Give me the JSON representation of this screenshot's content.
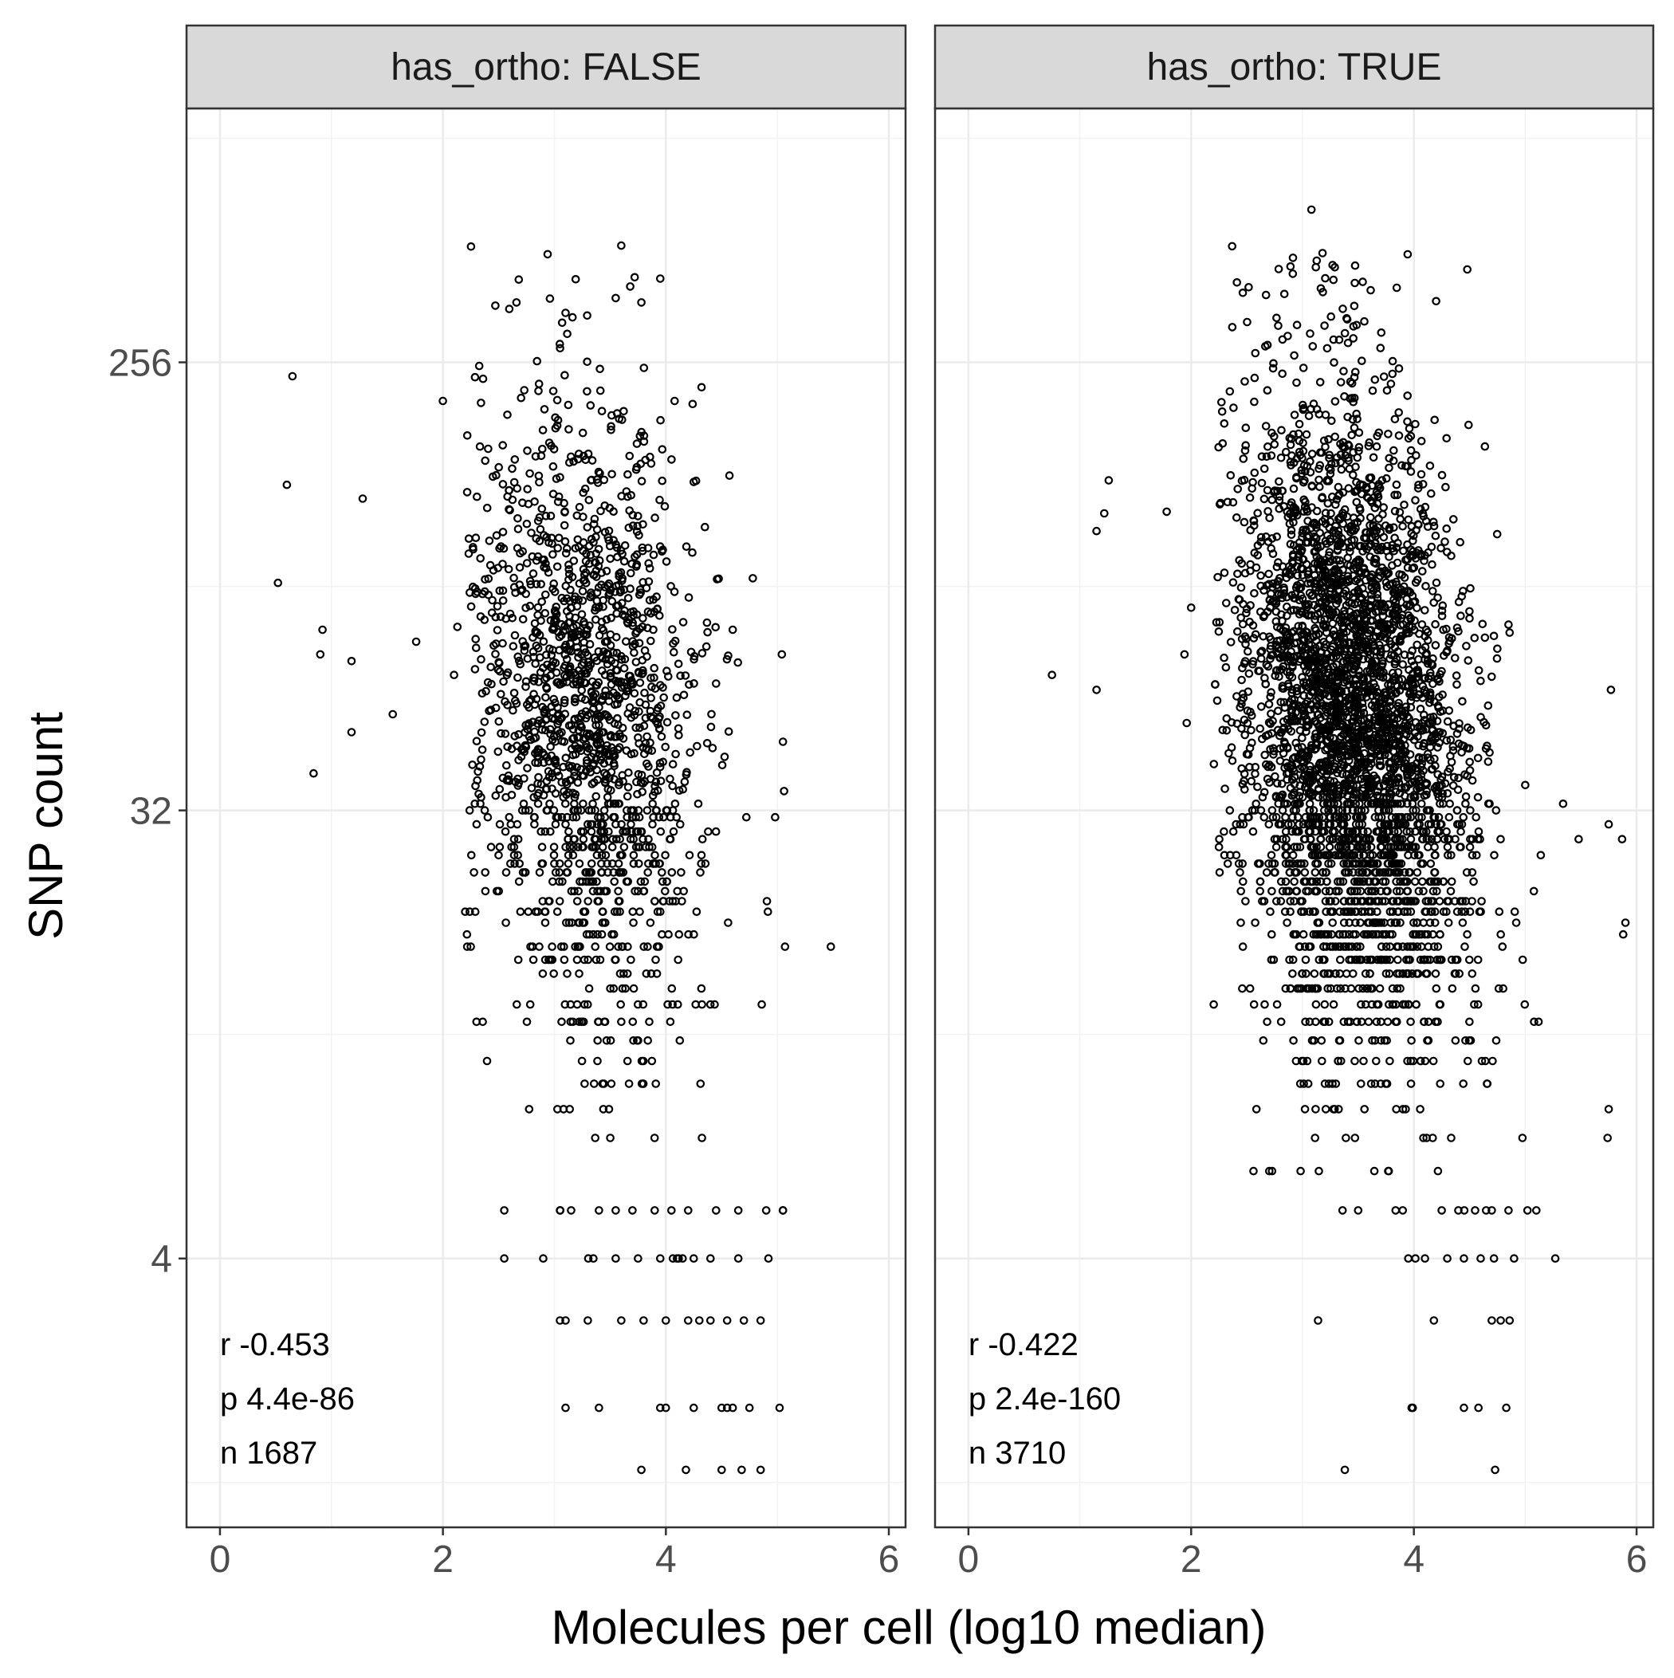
{
  "chart_data": {
    "type": "scatter",
    "xlabel": "Molecules per cell (log10 median)",
    "ylabel": "SNP count",
    "y_scale": "log2",
    "x_ticks": [
      "0",
      "2",
      "4",
      "6"
    ],
    "y_ticks": [
      "4",
      "32",
      "256"
    ],
    "xlim": [
      -0.3,
      6.15
    ],
    "ylim_log2": [
      0.2,
      9.7
    ],
    "grid": true,
    "point_style": "hollow-circle",
    "panels": [
      {
        "strip": "has_ortho: FALSE",
        "annotation": {
          "r": "r -0.453",
          "p": " p 4.4e-86",
          "n": " n 1687"
        },
        "n": 1687,
        "seed": 17,
        "x_center": 3.3,
        "outliers": [
          [
            0.52,
            92
          ],
          [
            0.6,
            145
          ],
          [
            0.65,
            240
          ],
          [
            0.92,
            74
          ],
          [
            0.9,
            66
          ],
          [
            1.18,
            64
          ],
          [
            1.18,
            46
          ],
          [
            0.84,
            38
          ],
          [
            1.28,
            136
          ],
          [
            1.55,
            50
          ],
          [
            1.76,
            70
          ],
          [
            2.0,
            214
          ],
          [
            5.06,
            35
          ],
          [
            5.48,
            17
          ],
          [
            5.05,
            5
          ],
          [
            4.24,
            211
          ],
          [
            3.6,
            440
          ],
          [
            3.72,
            380
          ],
          [
            3.55,
            345
          ],
          [
            3.78,
            338
          ],
          [
            3.68,
            364
          ],
          [
            3.1,
            322
          ],
          [
            2.66,
            338
          ],
          [
            2.47,
            333
          ],
          [
            5.04,
            66
          ],
          [
            5.05,
            44
          ],
          [
            4.98,
            31
          ],
          [
            3.78,
            1.5
          ],
          [
            4.18,
            1.5
          ],
          [
            4.5,
            1.5
          ],
          [
            4.68,
            1.5
          ],
          [
            4.85,
            1.5
          ],
          [
            2.9,
            4
          ],
          [
            2.55,
            5
          ],
          [
            2.55,
            4
          ],
          [
            2.25,
            17
          ],
          [
            2.2,
            20
          ],
          [
            2.13,
            75
          ],
          [
            2.1,
            60
          ],
          [
            4.32,
            228
          ],
          [
            4.78,
            94
          ],
          [
            4.6,
            74
          ]
        ],
        "low_rows": [
          [
            5,
            [
              3.05,
              3.15,
              3.4,
              3.55,
              3.7,
              3.9,
              4.05,
              4.2,
              4.45,
              4.65,
              4.9,
              5.05
            ]
          ],
          [
            4,
            [
              3.35,
              3.55,
              3.75,
              3.95,
              4.1,
              4.15,
              4.25,
              4.4,
              4.65,
              4.92
            ]
          ],
          [
            3,
            [
              3.05,
              3.1,
              3.3,
              3.6,
              3.8,
              4.0,
              4.2,
              4.3,
              4.4,
              4.55,
              4.7,
              4.85
            ]
          ],
          [
            2,
            [
              3.1,
              3.4,
              3.95,
              4.0,
              4.25,
              4.5,
              4.55,
              4.6,
              4.75,
              5.02
            ]
          ]
        ]
      },
      {
        "strip": "has_ortho: TRUE",
        "annotation": {
          "r": "r -0.422",
          "p": " p 2.4e-160",
          "n": " n 3710"
        },
        "n": 3710,
        "seed": 29,
        "x_center": 3.45,
        "outliers": [
          [
            0.75,
            60
          ],
          [
            1.15,
            56
          ],
          [
            1.15,
            117
          ],
          [
            1.22,
            127
          ],
          [
            1.26,
            148
          ],
          [
            1.78,
            128
          ],
          [
            1.94,
            66
          ],
          [
            1.96,
            48
          ],
          [
            2.0,
            82
          ],
          [
            3.08,
            520
          ],
          [
            3.12,
            398
          ],
          [
            3.18,
            425
          ],
          [
            3.27,
            402
          ],
          [
            3.47,
            370
          ],
          [
            4.48,
            394
          ],
          [
            4.2,
            340
          ],
          [
            5.77,
            56
          ],
          [
            5.75,
            30
          ],
          [
            5.87,
            28
          ],
          [
            5.9,
            19
          ],
          [
            5.88,
            18
          ],
          [
            5.27,
            4
          ],
          [
            2.98,
            9
          ],
          [
            3.14,
            3
          ],
          [
            3.38,
            1.5
          ],
          [
            4.73,
            1.5
          ],
          [
            3.98,
            2
          ],
          [
            5.75,
            8
          ],
          [
            5.74,
            7
          ],
          [
            2.25,
            27
          ],
          [
            5.08,
            12
          ],
          [
            5.12,
            12
          ],
          [
            5.0,
            36
          ],
          [
            5.14,
            26
          ],
          [
            5.34,
            33
          ],
          [
            5.48,
            28
          ]
        ],
        "low_rows": [
          [
            5,
            [
              3.5,
              3.9,
              4.25,
              4.4,
              4.55,
              4.7,
              4.85,
              5.02,
              5.1
            ]
          ],
          [
            4,
            [
              3.95,
              4.1,
              4.3,
              4.45,
              4.6,
              4.72,
              4.9
            ]
          ],
          [
            3,
            [
              4.18,
              4.7,
              4.78,
              4.86
            ]
          ],
          [
            2,
            [
              3.99,
              4.45,
              4.58,
              4.83
            ]
          ]
        ]
      }
    ]
  }
}
